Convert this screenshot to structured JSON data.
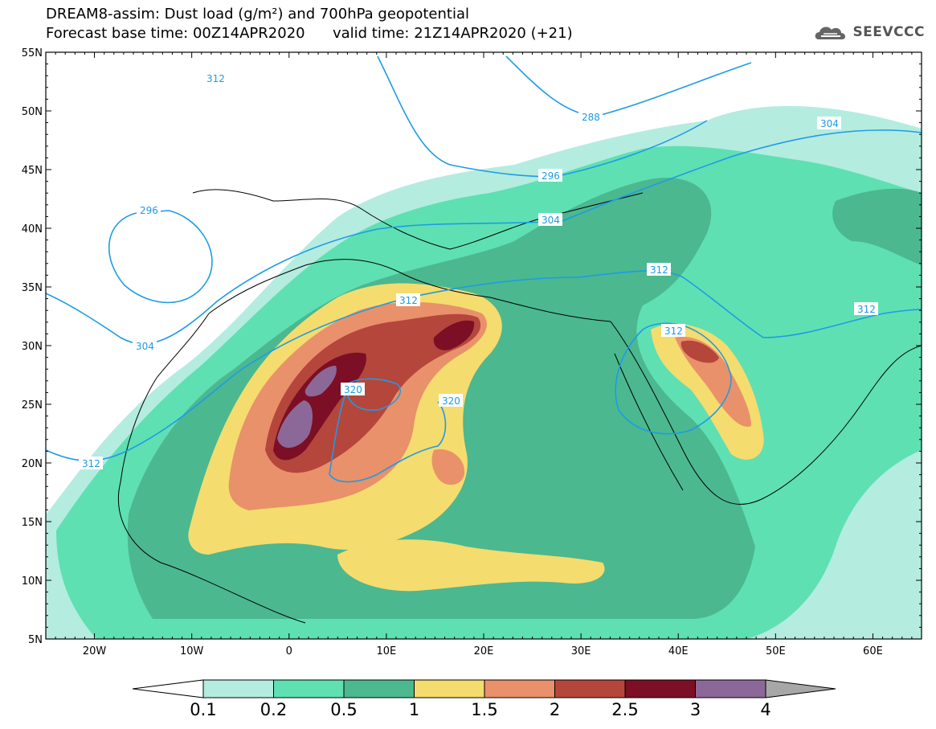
{
  "title_line1": "DREAM8-assim: Dust load (g/m²) and 700hPa geopotential",
  "title_line2_left": "Forecast base time: 00Z14APR2020",
  "title_line2_right": "valid time: 21Z14APR2020 (+21)",
  "logo": {
    "text": "SEEVCCC",
    "icon": "cloud-logo-icon"
  },
  "map": {
    "lon_range": [
      -25,
      65
    ],
    "lat_range": [
      5,
      55
    ],
    "lat_ticks": [
      "55N",
      "50N",
      "45N",
      "40N",
      "35N",
      "30N",
      "25N",
      "20N",
      "15N",
      "10N",
      "5N"
    ],
    "lon_ticks": [
      "20W",
      "10W",
      "0",
      "10E",
      "20E",
      "30E",
      "40E",
      "50E",
      "60E"
    ],
    "contour_labels": [
      "312",
      "288",
      "304",
      "296",
      "296",
      "304",
      "312",
      "304",
      "312",
      "312",
      "312",
      "320",
      "320",
      "312"
    ]
  },
  "colorbar": {
    "levels": [
      "0.1",
      "0.2",
      "0.5",
      "1",
      "1.5",
      "2",
      "2.5",
      "3",
      "4"
    ],
    "colors": [
      "#b4ece0",
      "#5ee0b2",
      "#4bb890",
      "#f5dc6e",
      "#e9916a",
      "#b5463c",
      "#7c0f25",
      "#8c6898",
      "#a7a7a7"
    ]
  },
  "colors": {
    "dust_01": "#b4ece0",
    "dust_02": "#5ee0b2",
    "dust_05": "#4bb890",
    "dust_1": "#f5dc6e",
    "dust_15": "#e9916a",
    "dust_2": "#b5463c",
    "dust_25": "#7c0f25",
    "dust_3": "#8c6898",
    "contour": "#1e9be6"
  }
}
